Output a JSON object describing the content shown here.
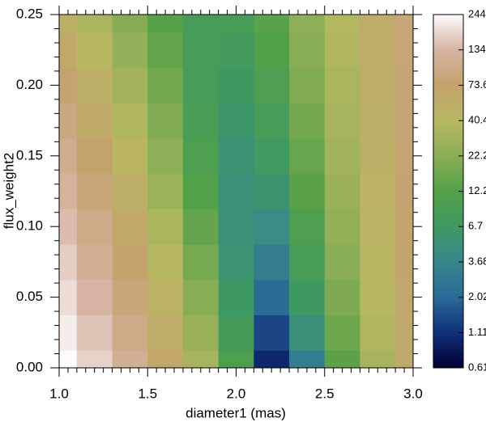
{
  "chart_data": {
    "type": "heatmap",
    "xlabel": "diameter1 (mas)",
    "ylabel": "flux_weight2",
    "x": [
      1.0,
      1.2,
      1.4,
      1.6,
      1.8,
      2.0,
      2.2,
      2.4,
      2.6,
      2.8,
      3.0
    ],
    "y": [
      0,
      0.025,
      0.05,
      0.075,
      0.1,
      0.125,
      0.15,
      0.175,
      0.2,
      0.225,
      0.25
    ],
    "values": [
      [
        244,
        173,
        113,
        66.5,
        32.2,
        10.4,
        1.0,
        3.0,
        13.5,
        32.4,
        59.7
      ],
      [
        216,
        151,
        98.0,
        56.4,
        26.4,
        8.1,
        1.4,
        4.8,
        16.2,
        35.7,
        63.3
      ],
      [
        190,
        132,
        84.4,
        47.6,
        21.6,
        6.5,
        2.1,
        6.8,
        19.0,
        39.0,
        66.7
      ],
      [
        166,
        114,
        72.2,
        39.9,
        17.7,
        5.5,
        3.1,
        8.8,
        21.8,
        42.1,
        69.7
      ],
      [
        145,
        98.3,
        61.3,
        33.4,
        14.6,
        5.0,
        4.3,
        10.9,
        24.5,
        45.0,
        72.5
      ],
      [
        125,
        84.0,
        51.8,
        27.8,
        12.2,
        4.9,
        5.6,
        13.1,
        27.1,
        47.7,
        74.9
      ],
      [
        106,
        71.1,
        43.4,
        23.2,
        10.5,
        5.3,
        7.1,
        15.2,
        29.6,
        50.2,
        77.0
      ],
      [
        89.9,
        59.8,
        36.3,
        19.5,
        9.3,
        5.9,
        8.6,
        17.3,
        31.9,
        52.3,
        78.6
      ],
      [
        75.1,
        49.8,
        30.3,
        16.6,
        8.7,
        6.7,
        10.3,
        19.4,
        34.0,
        54.1,
        79.8
      ],
      [
        61.9,
        41.1,
        25.2,
        14.4,
        8.5,
        7.6,
        11.9,
        21.3,
        35.9,
        55.6,
        80.5
      ],
      [
        50.2,
        33.6,
        21.1,
        12.8,
        8.6,
        8.7,
        13.5,
        23.1,
        37.5,
        56.7,
        80.7
      ]
    ],
    "xlim": [
      1.0,
      3.0
    ],
    "ylim": [
      0,
      0.25
    ],
    "xticks": [
      {
        "value": 1.0,
        "label": "1.0"
      },
      {
        "value": 1.5,
        "label": "1.5"
      },
      {
        "value": 2.0,
        "label": "2.0"
      },
      {
        "value": 2.5,
        "label": "2.5"
      },
      {
        "value": 3.0,
        "label": "3.0"
      }
    ],
    "yticks": [
      {
        "value": 0,
        "label": "0.00"
      },
      {
        "value": 0.05,
        "label": "0.05"
      },
      {
        "value": 0.1,
        "label": "0.10"
      },
      {
        "value": 0.15,
        "label": "0.15"
      },
      {
        "value": 0.2,
        "label": "0.20"
      },
      {
        "value": 0.25,
        "label": "0.25"
      }
    ],
    "xminorticks": [
      1.05,
      1.1,
      1.15,
      1.2,
      1.25,
      1.3,
      1.35,
      1.4,
      1.45,
      1.55,
      1.6,
      1.65,
      1.7,
      1.75,
      1.8,
      1.85,
      1.9,
      1.95,
      2.05,
      2.1,
      2.15,
      2.2,
      2.25,
      2.3,
      2.35,
      2.4,
      2.45,
      2.55,
      2.6,
      2.65,
      2.7,
      2.75,
      2.8,
      2.85,
      2.9,
      2.95
    ],
    "yminorticks": [
      0.01,
      0.02,
      0.03,
      0.04,
      0.06,
      0.07,
      0.08,
      0.09,
      0.11,
      0.12,
      0.13,
      0.14,
      0.16,
      0.17,
      0.18,
      0.19,
      0.21,
      0.22,
      0.23,
      0.24
    ],
    "clim": [
      0.611,
      244
    ],
    "clog": true,
    "cticks": [
      0.611,
      1.11,
      2.02,
      3.68,
      6.7,
      12.2,
      22.2,
      40.4,
      73.6,
      134,
      244
    ],
    "colormap": [
      "#000033",
      "#10307a",
      "#2a6a96",
      "#36878c",
      "#3f9a62",
      "#52a048",
      "#8cae55",
      "#b8b862",
      "#c4a26e",
      "#d6b4a4",
      "#fdfbfb"
    ]
  }
}
